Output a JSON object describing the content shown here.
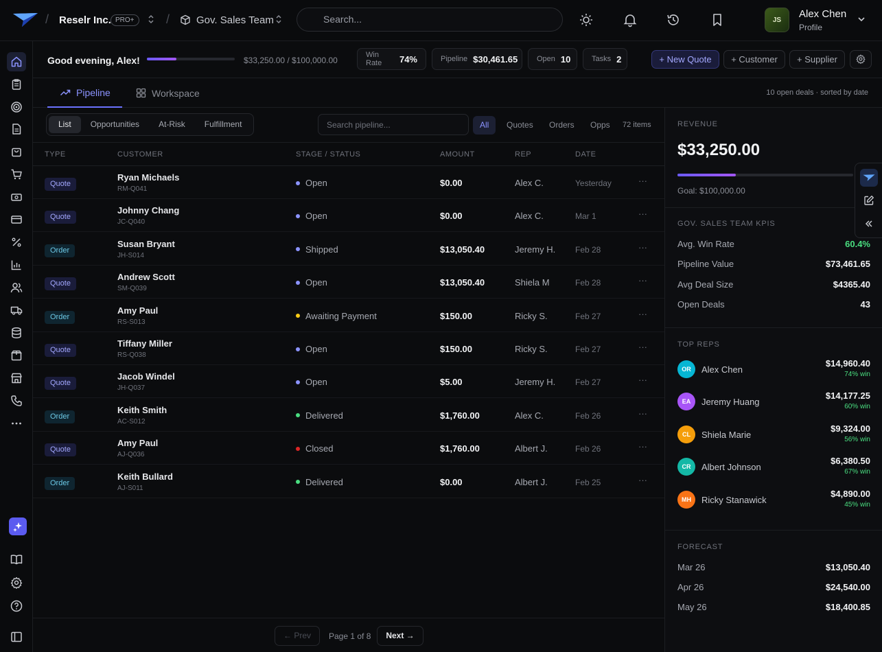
{
  "header": {
    "org_name": "Reselr Inc.",
    "plan_badge": "PRO+",
    "team_name": "Gov. Sales Team",
    "search_placeholder": "Search...",
    "user_initials": "JS",
    "user_name": "Alex Chen",
    "user_sub": "Profile"
  },
  "stats": {
    "greeting": "Good evening, Alex!",
    "goal_progress": 0.3325,
    "goal_text": "$33,250.00 / $100,000.00",
    "chips": [
      {
        "label": "Win Rate",
        "value": "74%"
      },
      {
        "label": "Pipeline",
        "value": "$30,461.65"
      },
      {
        "label": "Open",
        "value": "10"
      },
      {
        "label": "Tasks",
        "value": "2"
      }
    ],
    "actions": {
      "new_quote": "+ New Quote",
      "customer": "+ Customer",
      "supplier": "+ Supplier"
    }
  },
  "tabs": {
    "pipeline": "Pipeline",
    "workspace": "Workspace",
    "note": "10 open deals · sorted by date"
  },
  "toolbar": {
    "views": [
      "List",
      "Opportunities",
      "At-Risk",
      "Fulfillment"
    ],
    "search_placeholder": "Search pipeline...",
    "filters": [
      "All",
      "Quotes",
      "Orders",
      "Opps"
    ],
    "items_count": "72 items"
  },
  "table": {
    "headers": {
      "type": "TYPE",
      "customer": "CUSTOMER",
      "stage": "STAGE / STATUS",
      "amount": "AMOUNT",
      "rep": "REP",
      "date": "DATE"
    },
    "rows": [
      {
        "type": "Quote",
        "name": "Ryan Michaels",
        "id": "RM-Q041",
        "stage": "Open",
        "status_color": "#8b93ff",
        "amount": "$0.00",
        "rep": "Alex C.",
        "date": "Yesterday"
      },
      {
        "type": "Quote",
        "name": "Johnny Chang",
        "id": "JC-Q040",
        "stage": "Open",
        "status_color": "#8b93ff",
        "amount": "$0.00",
        "rep": "Alex C.",
        "date": "Mar 1"
      },
      {
        "type": "Order",
        "name": "Susan Bryant",
        "id": "JH-S014",
        "stage": "Shipped",
        "status_color": "#8b93ff",
        "amount": "$13,050.40",
        "rep": "Jeremy H.",
        "date": "Feb 28"
      },
      {
        "type": "Quote",
        "name": "Andrew Scott",
        "id": "SM-Q039",
        "stage": "Open",
        "status_color": "#8b93ff",
        "amount": "$13,050.40",
        "rep": "Shiela M",
        "date": "Feb 28"
      },
      {
        "type": "Order",
        "name": "Amy Paul",
        "id": "RS-S013",
        "stage": "Awaiting Payment",
        "status_color": "#facc15",
        "amount": "$150.00",
        "rep": "Ricky S.",
        "date": "Feb 27"
      },
      {
        "type": "Quote",
        "name": "Tiffany Miller",
        "id": "RS-Q038",
        "stage": "Open",
        "status_color": "#8b93ff",
        "amount": "$150.00",
        "rep": "Ricky S.",
        "date": "Feb 27"
      },
      {
        "type": "Quote",
        "name": "Jacob Windel",
        "id": "JH-Q037",
        "stage": "Open",
        "status_color": "#8b93ff",
        "amount": "$5.00",
        "rep": "Jeremy H.",
        "date": "Feb 27"
      },
      {
        "type": "Order",
        "name": "Keith Smith",
        "id": "AC-S012",
        "stage": "Delivered",
        "status_color": "#4ade80",
        "amount": "$1,760.00",
        "rep": "Alex C.",
        "date": "Feb 26"
      },
      {
        "type": "Quote",
        "name": "Amy Paul",
        "id": "AJ-Q036",
        "stage": "Closed",
        "status_color": "#dc2626",
        "amount": "$1,760.00",
        "rep": "Albert J.",
        "date": "Feb 26"
      },
      {
        "type": "Order",
        "name": "Keith Bullard",
        "id": "AJ-S011",
        "stage": "Delivered",
        "status_color": "#4ade80",
        "amount": "$0.00",
        "rep": "Albert J.",
        "date": "Feb 25"
      }
    ]
  },
  "pager": {
    "prev": "← Prev",
    "page_text": "Page 1 of 8",
    "next": "Next →"
  },
  "right": {
    "revenue_head": "REVENUE",
    "revenue_value": "$33,250.00",
    "revenue_progress": 0.3325,
    "revenue_goal": "Goal: $100,000.00",
    "kpi_head": "GOV. SALES TEAM KPIS",
    "kpis": [
      {
        "label": "Avg. Win Rate",
        "value": "60.4%",
        "color": "#4ade80"
      },
      {
        "label": "Pipeline Value",
        "value": "$73,461.65",
        "color": "#f2f3f5"
      },
      {
        "label": "Avg Deal Size",
        "value": "$4365.40",
        "color": "#f2f3f5"
      },
      {
        "label": "Open Deals",
        "value": "43",
        "color": "#f2f3f5"
      }
    ],
    "reps_head": "TOP REPS",
    "reps": [
      {
        "initials": "OR",
        "name": "Alex Chen",
        "amount": "$14,960.40",
        "win": "74% win",
        "color": "#06b6d4"
      },
      {
        "initials": "EA",
        "name": "Jeremy Huang",
        "amount": "$14,177.25",
        "win": "60% win",
        "color": "#a855f7"
      },
      {
        "initials": "CL",
        "name": "Shiela Marie",
        "amount": "$9,324.00",
        "win": "56% win",
        "color": "#f59e0b"
      },
      {
        "initials": "CR",
        "name": "Albert Johnson",
        "amount": "$6,380.50",
        "win": "67% win",
        "color": "#14b8a6"
      },
      {
        "initials": "MH",
        "name": "Ricky Stanawick",
        "amount": "$4,890.00",
        "win": "45% win",
        "color": "#f97316"
      }
    ],
    "forecast_head": "FORECAST",
    "forecast": [
      {
        "label": "Mar 26",
        "value": "$13,050.40"
      },
      {
        "label": "Apr 26",
        "value": "$24,540.00"
      },
      {
        "label": "May 26",
        "value": "$18,400.85"
      }
    ]
  }
}
